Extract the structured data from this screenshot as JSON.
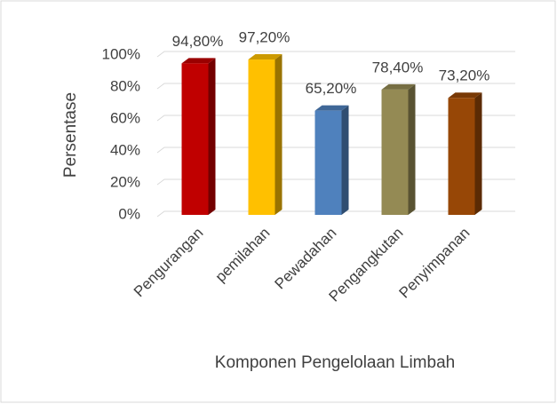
{
  "chart_data": {
    "type": "bar3d",
    "x_label": "Komponen Pengelolaan Limbah",
    "y_label": "Persentase",
    "categories": [
      "Pengurangan",
      "pemilahan",
      "Pewadahan",
      "Pengangkutan",
      "Penyimpanan"
    ],
    "values": [
      94.8,
      97.2,
      65.2,
      78.4,
      73.2
    ],
    "value_labels": [
      "94,80%",
      "97,20%",
      "65,20%",
      "78,40%",
      "73,20%"
    ],
    "colors": [
      "#c00000",
      "#ffc000",
      "#4f81bd",
      "#948a54",
      "#974706"
    ],
    "ylim": [
      0,
      100
    ],
    "yticks": [
      {
        "value": 0,
        "label": "0%"
      },
      {
        "value": 20,
        "label": "20%"
      },
      {
        "value": 40,
        "label": "40%"
      },
      {
        "value": 60,
        "label": "60%"
      },
      {
        "value": 80,
        "label": "80%"
      },
      {
        "value": 100,
        "label": "100%"
      }
    ],
    "grid": true
  }
}
